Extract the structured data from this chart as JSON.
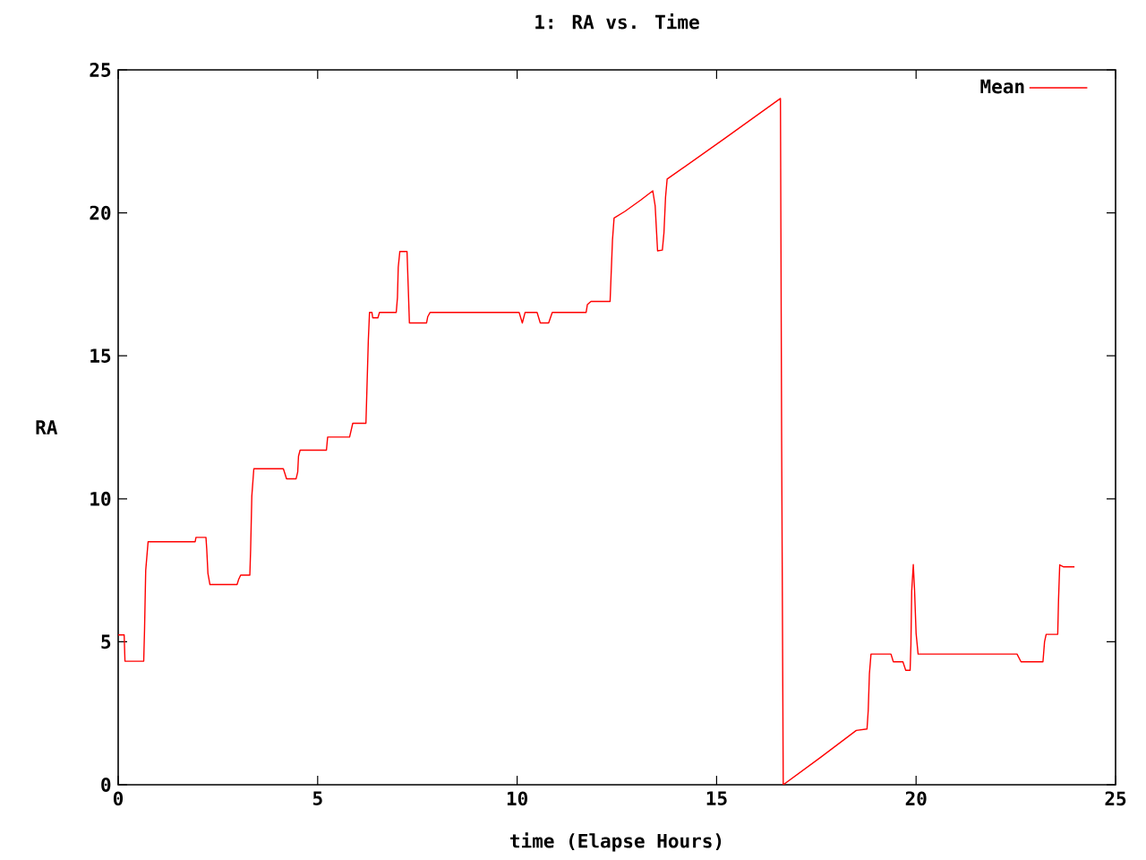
{
  "chart_data": {
    "type": "line",
    "title": "1: RA vs. Time",
    "xlabel": "time (Elapse Hours)",
    "ylabel": "RA",
    "xlim": [
      0,
      25
    ],
    "ylim": [
      0,
      25
    ],
    "xticks": [
      0,
      5,
      10,
      15,
      20,
      25
    ],
    "yticks": [
      0,
      5,
      10,
      15,
      20,
      25
    ],
    "grid": false,
    "legend": "top right",
    "marker": "none",
    "line_style": "solid",
    "series": [
      {
        "name": "Mean",
        "color": "#ff0000",
        "x": [
          0,
          0.15,
          0.17,
          0.64,
          0.66,
          0.69,
          0.75,
          1.93,
          1.95,
          2.2,
          2.22,
          2.25,
          2.3,
          2.98,
          3.02,
          3.07,
          3.3,
          3.32,
          3.35,
          3.4,
          4.14,
          4.18,
          4.22,
          4.46,
          4.5,
          4.52,
          4.56,
          5.22,
          5.25,
          5.8,
          5.88,
          6.21,
          6.23,
          6.27,
          6.3,
          6.36,
          6.38,
          6.51,
          6.55,
          6.97,
          7.0,
          7.02,
          7.06,
          7.24,
          7.27,
          7.3,
          7.73,
          7.76,
          7.82,
          10.05,
          10.13,
          10.2,
          10.5,
          10.58,
          10.79,
          10.88,
          11.73,
          11.76,
          11.85,
          12.33,
          12.35,
          12.39,
          12.43,
          12.7,
          13.1,
          13.4,
          13.46,
          13.52,
          13.64,
          13.68,
          13.72,
          13.76,
          15.2,
          16.6,
          16.63,
          16.67,
          17.6,
          18.5,
          18.77,
          18.8,
          18.83,
          18.87,
          19.37,
          19.43,
          19.67,
          19.74,
          19.85,
          19.87,
          19.89,
          19.93,
          19.96,
          20.0,
          20.05,
          22.53,
          22.63,
          23.18,
          23.22,
          23.26,
          23.55,
          23.57,
          23.6,
          23.7,
          23.97
        ],
        "values": [
          5.24,
          5.24,
          4.32,
          4.32,
          5.37,
          7.5,
          8.5,
          8.5,
          8.65,
          8.65,
          8.23,
          7.39,
          7.0,
          7.0,
          7.18,
          7.33,
          7.33,
          8.23,
          10.1,
          11.05,
          11.05,
          10.88,
          10.7,
          10.7,
          10.94,
          11.49,
          11.7,
          11.7,
          12.16,
          12.16,
          12.64,
          12.64,
          13.6,
          15.54,
          16.52,
          16.52,
          16.33,
          16.33,
          16.52,
          16.52,
          17.04,
          18.1,
          18.65,
          18.65,
          17.42,
          16.15,
          16.15,
          16.37,
          16.52,
          16.52,
          16.15,
          16.52,
          16.52,
          16.15,
          16.15,
          16.52,
          16.52,
          16.79,
          16.9,
          16.9,
          17.63,
          19.05,
          19.82,
          20.05,
          20.45,
          20.77,
          20.24,
          18.67,
          18.7,
          19.3,
          20.55,
          21.18,
          22.6,
          24.0,
          12.0,
          0,
          0.95,
          1.9,
          1.95,
          2.59,
          3.88,
          4.57,
          4.57,
          4.3,
          4.3,
          4.0,
          4.0,
          4.88,
          6.77,
          7.7,
          6.87,
          5.3,
          4.57,
          4.57,
          4.3,
          4.3,
          5.0,
          5.26,
          5.26,
          6.45,
          7.69,
          7.62,
          7.62
        ]
      }
    ]
  }
}
